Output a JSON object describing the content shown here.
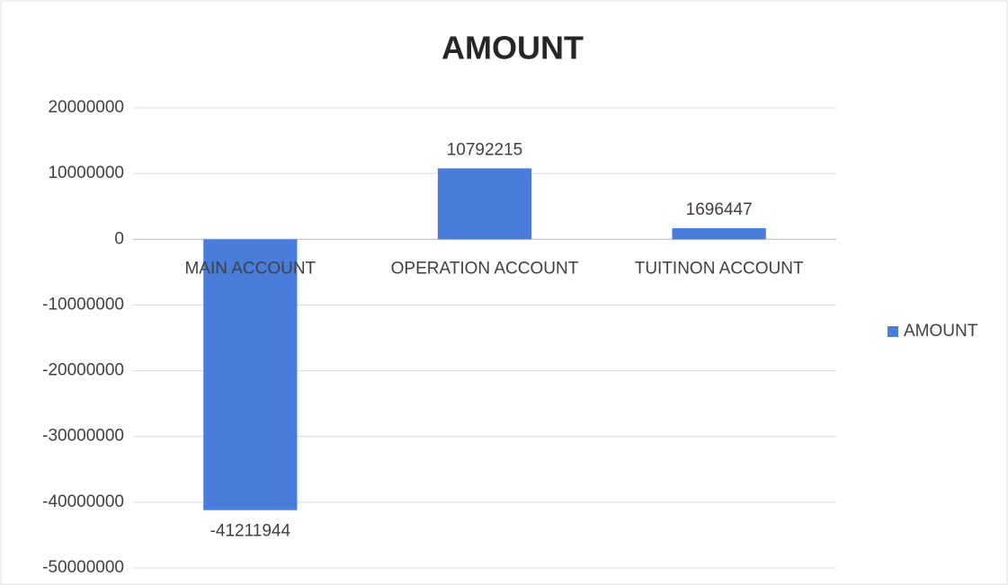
{
  "chart_data": {
    "type": "bar",
    "title": "AMOUNT",
    "categories": [
      "MAIN ACCOUNT",
      "OPERATION ACCOUNT",
      "TUITINON ACCOUNT"
    ],
    "series": [
      {
        "name": "AMOUNT",
        "color": "#4a7ddb",
        "values": [
          -41211944,
          10792215,
          1696447
        ]
      }
    ],
    "ylim": [
      -50000000,
      20000000
    ],
    "yticks": [
      -50000000,
      -40000000,
      -30000000,
      -20000000,
      -10000000,
      0,
      10000000,
      20000000
    ],
    "grid": true,
    "legend": "right"
  }
}
